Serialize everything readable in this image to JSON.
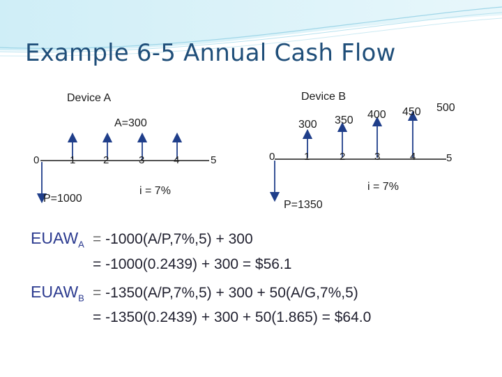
{
  "title": "Example 6-5  Annual Cash Flow",
  "device_a": {
    "label": "Device A",
    "annual_label": "A=300",
    "ticks": [
      "0",
      "1",
      "2",
      "3",
      "4",
      "5"
    ],
    "present_label": "P=1000",
    "rate_label": "i = 7%"
  },
  "device_b": {
    "label": "Device B",
    "cash_values": [
      "300",
      "350",
      "400",
      "450",
      "500"
    ],
    "ticks": [
      "0",
      "1",
      "2",
      "3",
      "4",
      "5"
    ],
    "present_label": "P=1350",
    "rate_label": "i = 7%"
  },
  "equations": {
    "a_label": "EUAW",
    "a_sub": "A",
    "a_line1_lead": "= ",
    "a_line1": "-1000(A/P,7%,5) + 300",
    "a_line2": "= -1000(0.2439) + 300 = $56.1",
    "b_label": "EUAW",
    "b_sub": "B",
    "b_line1_lead": "= ",
    "b_line1": "-1350(A/P,7%,5) + 300 + 50(A/G,7%,5)",
    "b_line2": "= -1350(0.2439) + 300 + 50(1.865) = $64.0"
  },
  "colors": {
    "title": "#1f4e79",
    "arrow": "#1f3e8a",
    "equation_label": "#2b3a8f"
  }
}
